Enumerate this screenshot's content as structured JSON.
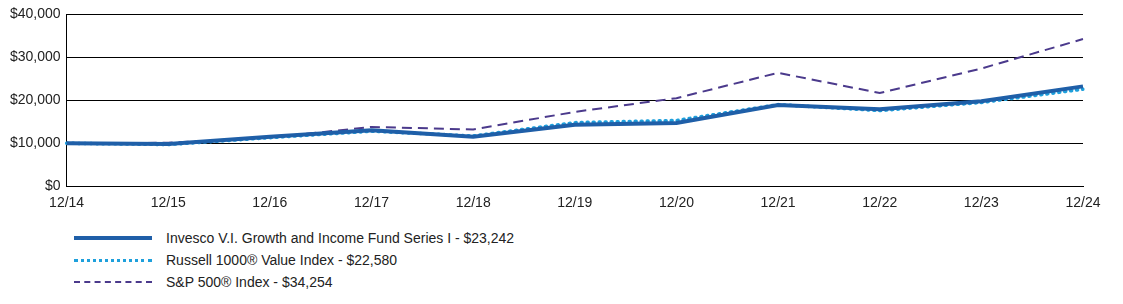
{
  "chart_data": {
    "type": "line",
    "categories": [
      "12/14",
      "12/15",
      "12/16",
      "12/17",
      "12/18",
      "12/19",
      "12/20",
      "12/21",
      "12/22",
      "12/23",
      "12/24"
    ],
    "series": [
      {
        "name": "Invesco V.I. Growth and Income Fund Series I - $23,242",
        "color": "#1f5fa8",
        "line_style": "solid",
        "values": [
          10000,
          9800,
          11500,
          13000,
          11500,
          14300,
          14700,
          18900,
          17900,
          19800,
          23242
        ]
      },
      {
        "name": "Russell 1000® Value Index - $22,580",
        "color": "#1ea0dc",
        "line_style": "dotted",
        "values": [
          10000,
          9700,
          11300,
          12800,
          11700,
          14800,
          15300,
          19000,
          17600,
          19500,
          22580
        ]
      },
      {
        "name": "S&P 500® Index - $34,254",
        "color": "#4b3a8c",
        "line_style": "dashed",
        "values": [
          10000,
          10100,
          11300,
          13800,
          13200,
          17300,
          20500,
          26400,
          21700,
          27400,
          34254
        ]
      }
    ],
    "ylim": [
      0,
      40000
    ],
    "yticks": [
      {
        "value": 0,
        "label": "$0"
      },
      {
        "value": 10000,
        "label": "$10,000"
      },
      {
        "value": 20000,
        "label": "$20,000"
      },
      {
        "value": 30000,
        "label": "$30,000"
      },
      {
        "value": 40000,
        "label": "$40,000"
      }
    ],
    "grid": true,
    "legend": "bottom"
  }
}
